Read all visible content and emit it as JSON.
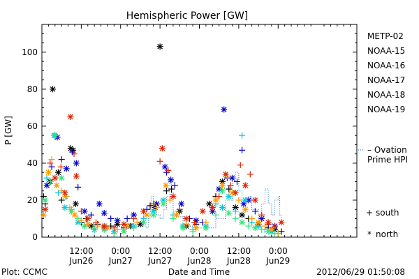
{
  "chart_data": {
    "type": "scatter",
    "title": "Hemispheric Power [GW]",
    "ylabel": "P [GW]",
    "xlabel": "Date and Time",
    "ylim": [
      0,
      115
    ],
    "xlim_hours": [
      0,
      96
    ],
    "yticks": [
      0,
      20,
      40,
      60,
      80,
      100
    ],
    "xticks": [
      {
        "hour": 12,
        "time": "12:00",
        "date": "Jun26"
      },
      {
        "hour": 24,
        "time": "0:00",
        "date": "Jun27"
      },
      {
        "hour": 36,
        "time": "12:00",
        "date": "Jun27"
      },
      {
        "hour": 48,
        "time": "0:00",
        "date": "Jun28"
      },
      {
        "hour": 60,
        "time": "12:00",
        "date": "Jun28"
      },
      {
        "hour": 72,
        "time": "0:00",
        "date": "Jun29"
      }
    ],
    "footer_left": "Plot: CCMC",
    "footer_right": "2012/06/29 01:50:08",
    "legend": [
      {
        "name": "METP-02",
        "color": "#000000"
      },
      {
        "name": "NOAA-15",
        "color": "#0000cc"
      },
      {
        "name": "NOAA-16",
        "color": "#00c8d8"
      },
      {
        "name": "NOAA-17",
        "color": "#33e27a"
      },
      {
        "name": "NOAA-18",
        "color": "#ff9900"
      },
      {
        "name": "NOAA-19",
        "color": "#dd2200"
      }
    ],
    "ovation_label": [
      "– Ovation",
      "Prime HPI"
    ],
    "ovation_color": "#0066cc",
    "marker_legend": [
      {
        "symbol": "+",
        "label": "south"
      },
      {
        "symbol": "*",
        "label": "north"
      }
    ],
    "ovation_steps": [
      [
        28.8,
        6
      ],
      [
        31.8,
        5
      ],
      [
        32.5,
        10
      ],
      [
        33,
        15
      ],
      [
        33.5,
        22
      ],
      [
        34,
        18
      ],
      [
        35,
        12
      ],
      [
        36,
        10
      ],
      [
        37,
        15
      ],
      [
        38,
        22
      ],
      [
        39,
        30
      ],
      [
        39.5,
        24
      ],
      [
        40,
        14
      ],
      [
        41,
        11
      ],
      [
        43,
        7
      ],
      [
        45,
        6
      ],
      [
        47,
        5
      ],
      [
        50,
        5
      ],
      [
        53,
        10
      ],
      [
        56,
        20
      ],
      [
        58,
        30
      ],
      [
        59,
        35
      ],
      [
        60,
        25
      ],
      [
        61,
        20
      ],
      [
        63,
        22
      ],
      [
        64,
        15
      ],
      [
        66,
        10
      ],
      [
        67,
        18
      ],
      [
        68,
        26
      ],
      [
        69,
        18
      ],
      [
        70,
        12
      ],
      [
        71,
        20
      ],
      [
        72,
        22
      ],
      [
        72.5,
        12
      ],
      [
        73,
        8
      ]
    ],
    "series": [
      {
        "name": "METP-02",
        "points": [
          [
            0.5,
            22,
            "+"
          ],
          [
            1,
            18,
            "+"
          ],
          [
            2.5,
            30,
            "*"
          ],
          [
            3.3,
            80,
            "*"
          ],
          [
            5,
            35,
            "*"
          ],
          [
            6,
            20,
            "+"
          ],
          [
            8.8,
            48,
            "*"
          ],
          [
            9.5,
            47,
            "*"
          ],
          [
            10.3,
            18,
            "*"
          ],
          [
            12,
            8,
            "+"
          ],
          [
            13.5,
            10,
            "+"
          ],
          [
            15,
            6,
            "*"
          ],
          [
            17,
            7,
            "+"
          ],
          [
            19,
            5,
            "*"
          ],
          [
            21,
            6,
            "+"
          ],
          [
            23,
            7,
            "*"
          ],
          [
            25,
            5,
            "+"
          ],
          [
            27,
            6,
            "*"
          ],
          [
            30,
            7,
            "*"
          ],
          [
            33,
            17,
            "+"
          ],
          [
            34.5,
            16,
            "*"
          ],
          [
            36,
            103,
            "*"
          ],
          [
            38,
            25,
            "+"
          ],
          [
            39.5,
            26,
            "+"
          ],
          [
            42,
            14,
            "*"
          ],
          [
            44,
            6,
            "*"
          ],
          [
            47,
            7,
            "+"
          ],
          [
            51,
            18,
            "*"
          ],
          [
            53,
            22,
            "+"
          ],
          [
            55,
            30,
            "*"
          ],
          [
            57,
            26,
            "+"
          ],
          [
            59,
            16,
            "*"
          ],
          [
            61,
            12,
            "*"
          ],
          [
            63,
            10,
            "+"
          ],
          [
            66,
            7,
            "*"
          ],
          [
            69,
            5,
            "+"
          ],
          [
            71,
            4,
            "*"
          ],
          [
            73,
            3,
            "+"
          ]
        ]
      },
      {
        "name": "NOAA-15",
        "points": [
          [
            1.5,
            28,
            "*"
          ],
          [
            3,
            38,
            "+"
          ],
          [
            4.7,
            54,
            "*"
          ],
          [
            6,
            42,
            "+"
          ],
          [
            7.5,
            37,
            "*"
          ],
          [
            9.3,
            46,
            "+"
          ],
          [
            10.5,
            40,
            "*"
          ],
          [
            11,
            27,
            "+"
          ],
          [
            13,
            14,
            "*"
          ],
          [
            15,
            12,
            "+"
          ],
          [
            17.5,
            18,
            "*"
          ],
          [
            19,
            13,
            "*"
          ],
          [
            21,
            10,
            "+"
          ],
          [
            23,
            9,
            "*"
          ],
          [
            26,
            10,
            "+"
          ],
          [
            28,
            12,
            "*"
          ],
          [
            32,
            15,
            "+"
          ],
          [
            35,
            18,
            "*"
          ],
          [
            37.5,
            38,
            "*"
          ],
          [
            38,
            35,
            "+"
          ],
          [
            39.3,
            31,
            "*"
          ],
          [
            40.5,
            28,
            "+"
          ],
          [
            42.5,
            18,
            "*"
          ],
          [
            45,
            10,
            "+"
          ],
          [
            47,
            9,
            "*"
          ],
          [
            49,
            8,
            "+"
          ],
          [
            52,
            14,
            "*"
          ],
          [
            54,
            26,
            "*"
          ],
          [
            55.5,
            69,
            "*"
          ],
          [
            56.5,
            32,
            "+"
          ],
          [
            58,
            32,
            "*"
          ],
          [
            59.5,
            30,
            "+"
          ],
          [
            61,
            47,
            "+"
          ],
          [
            61.5,
            18,
            "*"
          ],
          [
            63,
            20,
            "*"
          ],
          [
            65,
            14,
            "+"
          ],
          [
            67,
            10,
            "*"
          ],
          [
            69,
            7,
            "+"
          ],
          [
            71,
            6,
            "*"
          ]
        ]
      },
      {
        "name": "NOAA-16",
        "points": [
          [
            1.5,
            32,
            "+"
          ],
          [
            3.7,
            55,
            "*"
          ],
          [
            5,
            24,
            "+"
          ],
          [
            7,
            16,
            "*"
          ],
          [
            9,
            15,
            "+"
          ],
          [
            11,
            8,
            "*"
          ],
          [
            13,
            6,
            "+"
          ],
          [
            16,
            4,
            "*"
          ],
          [
            19,
            5,
            "+"
          ],
          [
            22,
            3,
            "*"
          ],
          [
            25,
            4,
            "+"
          ],
          [
            28,
            6,
            "*"
          ],
          [
            31,
            10,
            "+"
          ],
          [
            34,
            14,
            "*"
          ],
          [
            37,
            20,
            "*"
          ],
          [
            40,
            12,
            "+"
          ],
          [
            43,
            6,
            "*"
          ],
          [
            46,
            4,
            "+"
          ],
          [
            50,
            6,
            "*"
          ],
          [
            53,
            18,
            "+"
          ],
          [
            55,
            16,
            "*"
          ],
          [
            57,
            22,
            "*"
          ],
          [
            59,
            14,
            "+"
          ],
          [
            61,
            55,
            "+"
          ],
          [
            62,
            20,
            "*"
          ],
          [
            64,
            8,
            "+"
          ],
          [
            66,
            6,
            "*"
          ],
          [
            68,
            4,
            "+"
          ],
          [
            70,
            3,
            "*"
          ],
          [
            72,
            2,
            "+"
          ]
        ]
      },
      {
        "name": "NOAA-17",
        "points": [
          [
            1,
            20,
            "*"
          ],
          [
            2.7,
            30,
            "+"
          ],
          [
            4,
            55,
            "*"
          ],
          [
            6,
            32,
            "*"
          ],
          [
            7.5,
            22,
            "+"
          ],
          [
            9,
            14,
            "*"
          ],
          [
            11,
            10,
            "+"
          ],
          [
            13,
            6,
            "*"
          ],
          [
            16,
            5,
            "+"
          ],
          [
            19,
            4,
            "*"
          ],
          [
            22,
            2,
            "+"
          ],
          [
            25,
            3,
            "*"
          ],
          [
            28,
            5,
            "+"
          ],
          [
            31,
            8,
            "*"
          ],
          [
            34,
            12,
            "*"
          ],
          [
            37,
            18,
            "*"
          ],
          [
            40,
            10,
            "+"
          ],
          [
            43,
            5,
            "*"
          ],
          [
            46,
            3,
            "+"
          ],
          [
            50,
            5,
            "*"
          ],
          [
            53,
            12,
            "+"
          ],
          [
            55,
            25,
            "*"
          ],
          [
            57,
            13,
            "*"
          ],
          [
            59,
            10,
            "+"
          ],
          [
            61,
            8,
            "*"
          ],
          [
            63,
            6,
            "+"
          ],
          [
            65,
            5,
            "*"
          ],
          [
            67,
            4,
            "+"
          ],
          [
            69,
            3,
            "*"
          ],
          [
            71,
            2,
            "+"
          ]
        ]
      },
      {
        "name": "NOAA-18",
        "points": [
          [
            0.5,
            12,
            "*"
          ],
          [
            2,
            35,
            "*"
          ],
          [
            3,
            42,
            "+"
          ],
          [
            4.5,
            28,
            "*"
          ],
          [
            6,
            25,
            "+"
          ],
          [
            7.2,
            22,
            "*"
          ],
          [
            8.5,
            16,
            "+"
          ],
          [
            10,
            12,
            "*"
          ],
          [
            12,
            9,
            "+"
          ],
          [
            14,
            7,
            "*"
          ],
          [
            17,
            6,
            "+"
          ],
          [
            20,
            5,
            "*"
          ],
          [
            23,
            4,
            "+"
          ],
          [
            26,
            6,
            "*"
          ],
          [
            29,
            8,
            "+"
          ],
          [
            32,
            12,
            "*"
          ],
          [
            35,
            16,
            "+"
          ],
          [
            37.8,
            28,
            "*"
          ],
          [
            39,
            20,
            "+"
          ],
          [
            41,
            12,
            "*"
          ],
          [
            44,
            7,
            "+"
          ],
          [
            47,
            5,
            "*"
          ],
          [
            50,
            8,
            "+"
          ],
          [
            53,
            20,
            "*"
          ],
          [
            55,
            28,
            "*"
          ],
          [
            56.5,
            33,
            "+"
          ],
          [
            58,
            24,
            "*"
          ],
          [
            60,
            20,
            "+"
          ],
          [
            62,
            15,
            "*"
          ],
          [
            64,
            10,
            "+"
          ],
          [
            66,
            8,
            "*"
          ],
          [
            68,
            6,
            "+"
          ],
          [
            70,
            4,
            "*"
          ],
          [
            72,
            2,
            "+"
          ]
        ]
      },
      {
        "name": "NOAA-19",
        "points": [
          [
            1,
            15,
            "*"
          ],
          [
            2.5,
            40,
            "+"
          ],
          [
            4,
            32,
            "*"
          ],
          [
            5.8,
            38,
            "+"
          ],
          [
            7,
            24,
            "*"
          ],
          [
            8.7,
            65,
            "*"
          ],
          [
            9.8,
            45,
            "+"
          ],
          [
            10.5,
            33,
            "*"
          ],
          [
            12,
            14,
            "+"
          ],
          [
            14,
            10,
            "*"
          ],
          [
            16.5,
            8,
            "+"
          ],
          [
            19,
            6,
            "*"
          ],
          [
            22,
            5,
            "+"
          ],
          [
            25,
            7,
            "*"
          ],
          [
            28,
            10,
            "+"
          ],
          [
            31,
            14,
            "*"
          ],
          [
            34,
            18,
            "+"
          ],
          [
            36,
            41,
            "+"
          ],
          [
            36.7,
            48,
            "*"
          ],
          [
            38.5,
            36,
            "+"
          ],
          [
            40,
            22,
            "*"
          ],
          [
            42,
            15,
            "+"
          ],
          [
            44,
            10,
            "*"
          ],
          [
            46.5,
            8,
            "+"
          ],
          [
            49,
            14,
            "*"
          ],
          [
            52,
            16,
            "*"
          ],
          [
            54,
            22,
            "+"
          ],
          [
            56,
            34,
            "*"
          ],
          [
            57.5,
            28,
            "+"
          ],
          [
            59,
            24,
            "*"
          ],
          [
            60.5,
            39,
            "+"
          ],
          [
            62,
            28,
            "*"
          ],
          [
            63.5,
            34,
            "+"
          ],
          [
            65,
            20,
            "*"
          ],
          [
            67,
            12,
            "+"
          ],
          [
            69,
            8,
            "*"
          ],
          [
            71,
            6,
            "+"
          ],
          [
            73,
            8,
            "*"
          ]
        ]
      }
    ]
  }
}
